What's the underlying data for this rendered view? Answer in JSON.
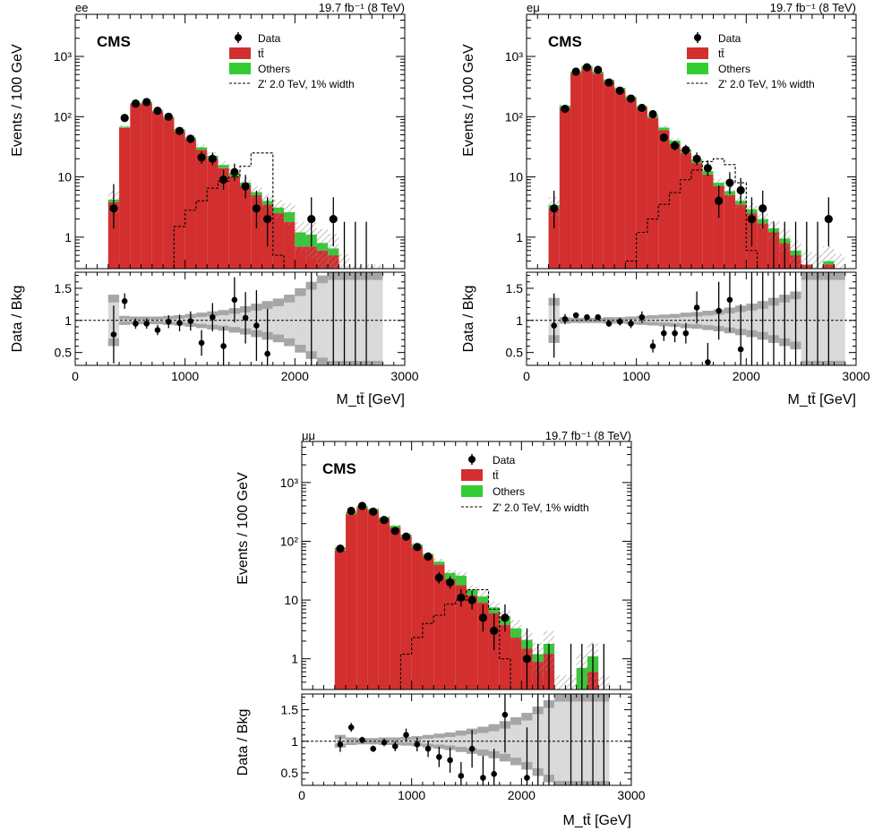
{
  "legend": {
    "data": "Data",
    "ttbar": "tt̄",
    "others": "Others",
    "zprime": "Z' 2.0 TeV, 1% width"
  },
  "colors": {
    "ttbar": "#d32f2f",
    "others": "#33cc33",
    "zprime": "#000000",
    "data": "#000000",
    "ratio_band_light": "#d9d9d9",
    "ratio_band_dark": "#a6a6a6",
    "syst_hatch": "#888888"
  },
  "chart_data": [
    {
      "type": "bar",
      "channel": "ee",
      "title": "ee",
      "lumi": "19.7 fb⁻¹ (8 TeV)",
      "experiment": "CMS",
      "ylabel": "Events / 100 GeV",
      "ratio_ylabel": "Data / Bkg",
      "xlabel": "M_tt̄ [GeV]",
      "xlim": [
        0,
        3000
      ],
      "ylim": [
        0.3,
        5000
      ],
      "yscale": "log",
      "ratio_ylim": [
        0.3,
        1.75
      ],
      "x_ticks": [
        0,
        1000,
        2000,
        3000
      ],
      "y_ticks": [
        1,
        10,
        100,
        1000
      ],
      "ratio_ticks": [
        0.5,
        1,
        1.5
      ],
      "bins_low": [
        300,
        400,
        500,
        600,
        700,
        800,
        900,
        1000,
        1100,
        1200,
        1300,
        1400,
        1500,
        1600,
        1700,
        1800,
        1900,
        2000,
        2100,
        2200,
        2300,
        2400,
        2500,
        2600,
        2700
      ],
      "ttbar": [
        3.8,
        65,
        160,
        165,
        120,
        95,
        58,
        42,
        28,
        20,
        14,
        10,
        7,
        5,
        3.5,
        2.5,
        1.8,
        0.7,
        0.7,
        0.6,
        0.5,
        0.3,
        0.2,
        0.2,
        0.2
      ],
      "others": [
        0.4,
        3,
        8,
        9,
        6,
        6,
        4,
        3,
        3,
        2.5,
        1.8,
        1.5,
        1,
        0.6,
        0.5,
        0.6,
        0.8,
        0.5,
        0.4,
        0.2,
        0.15,
        0,
        0,
        0,
        0
      ],
      "zprime": [
        0,
        0,
        0,
        0,
        0,
        0.3,
        1.5,
        2.8,
        4,
        6.5,
        8.5,
        10,
        15,
        25,
        25,
        0.5,
        0.3,
        0,
        0,
        0,
        0,
        0,
        0,
        0,
        0
      ],
      "data_x": [
        350,
        450,
        550,
        650,
        750,
        850,
        950,
        1050,
        1150,
        1250,
        1350,
        1450,
        1550,
        1650,
        1750,
        2150,
        2350
      ],
      "data_y": [
        3,
        95,
        165,
        175,
        125,
        100,
        58,
        43,
        21,
        20,
        9,
        12,
        7,
        3,
        2,
        2,
        2
      ],
      "data_err": [
        [
          1.6,
          4.6
        ],
        [
          10,
          11
        ],
        [
          13,
          14
        ],
        [
          13,
          14
        ],
        [
          11,
          12
        ],
        [
          10,
          11
        ],
        [
          7.6,
          8.6
        ],
        [
          6.5,
          7.5
        ],
        [
          4.5,
          5.5
        ],
        [
          4.4,
          5.4
        ],
        [
          2.9,
          4.1
        ],
        [
          3.4,
          4.6
        ],
        [
          2.6,
          3.8
        ],
        [
          1.6,
          2.9
        ],
        [
          1.3,
          2.6
        ],
        [
          1.3,
          2.6
        ],
        [
          1.3,
          2.6
        ]
      ],
      "extra_error_bars": [
        2450,
        2550,
        2650
      ],
      "ratio_x": [
        350,
        450,
        550,
        650,
        750,
        850,
        950,
        1050,
        1150,
        1250,
        1350,
        1450,
        1550,
        1650,
        1750
      ],
      "ratio_y": [
        0.78,
        1.3,
        0.95,
        0.95,
        0.85,
        0.98,
        0.96,
        0.99,
        0.65,
        1.05,
        0.6,
        1.32,
        1.04,
        0.92,
        0.48
      ],
      "ratio_err": [
        0.45,
        0.12,
        0.08,
        0.08,
        0.08,
        0.1,
        0.13,
        0.15,
        0.2,
        0.22,
        0.3,
        0.35,
        0.4,
        0.55,
        0.7
      ],
      "ratio_band": [
        0.4,
        0.07,
        0.06,
        0.06,
        0.06,
        0.07,
        0.08,
        0.1,
        0.12,
        0.14,
        0.16,
        0.19,
        0.22,
        0.26,
        0.3,
        0.34,
        0.4,
        0.5,
        0.6,
        0.7,
        0.75,
        0.75,
        0.75,
        0.75,
        0.75
      ]
    },
    {
      "type": "bar",
      "channel": "emu",
      "title": "eμ",
      "lumi": "19.7 fb⁻¹ (8 TeV)",
      "experiment": "CMS",
      "ylabel": "Events / 100 GeV",
      "ratio_ylabel": "Data / Bkg",
      "xlabel": "M_tt̄ [GeV]",
      "xlim": [
        0,
        3000
      ],
      "ylim": [
        0.3,
        5000
      ],
      "yscale": "log",
      "ratio_ylim": [
        0.3,
        1.75
      ],
      "x_ticks": [
        0,
        1000,
        2000,
        3000
      ],
      "y_ticks": [
        1,
        10,
        100,
        1000
      ],
      "ratio_ticks": [
        0.5,
        1,
        1.5
      ],
      "bins_low": [
        200,
        300,
        400,
        500,
        600,
        700,
        800,
        900,
        1000,
        1100,
        1200,
        1300,
        1400,
        1500,
        1600,
        1700,
        1800,
        1900,
        2000,
        2100,
        2200,
        2300,
        2400,
        2500,
        2600,
        2700,
        2800
      ],
      "ttbar": [
        3,
        140,
        520,
        640,
        520,
        380,
        280,
        200,
        140,
        95,
        60,
        35,
        25,
        17,
        11,
        7,
        5,
        3.5,
        2.5,
        1.7,
        1.2,
        0.8,
        0.5,
        0.35,
        0.3,
        0.35,
        0.3
      ],
      "others": [
        0.4,
        12,
        40,
        55,
        40,
        30,
        22,
        15,
        10,
        8,
        6,
        5,
        3.5,
        2.5,
        1.5,
        1,
        0.8,
        0.5,
        0.4,
        0.3,
        0.2,
        0.15,
        0.1,
        0,
        0,
        0.05,
        0
      ],
      "zprime": [
        0,
        0,
        0,
        0,
        0,
        0,
        0,
        0.4,
        1.2,
        2,
        3.5,
        5.5,
        9,
        13,
        18,
        20,
        16,
        8,
        0.6,
        0.3,
        0,
        0,
        0,
        0,
        0,
        0,
        0
      ],
      "data_x": [
        250,
        350,
        450,
        550,
        650,
        750,
        850,
        950,
        1050,
        1150,
        1250,
        1350,
        1450,
        1550,
        1650,
        1750,
        1850,
        1950,
        2050,
        2150,
        2750
      ],
      "data_y": [
        3,
        135,
        560,
        660,
        600,
        370,
        270,
        200,
        140,
        110,
        45,
        33,
        28,
        20,
        14,
        4,
        8,
        6,
        2,
        3,
        2
      ],
      "data_err": [
        [
          1.6,
          2.9
        ],
        [
          12,
          13
        ],
        [
          23,
          25
        ],
        [
          26,
          27
        ],
        [
          24,
          25
        ],
        [
          19,
          20
        ],
        [
          16,
          17
        ],
        [
          14,
          15
        ],
        [
          12,
          13
        ],
        [
          10,
          11
        ],
        [
          6.5,
          7.5
        ],
        [
          5.6,
          6.7
        ],
        [
          5.2,
          6.2
        ],
        [
          4.4,
          5.5
        ],
        [
          3.7,
          4.8
        ],
        [
          1.9,
          3.2
        ],
        [
          2.8,
          4
        ],
        [
          2.4,
          3.6
        ],
        [
          1.3,
          2.6
        ],
        [
          1.6,
          2.9
        ],
        [
          1.3,
          2.6
        ]
      ],
      "extra_error_bars": [
        2250,
        2350,
        2450,
        2550,
        2650
      ],
      "ratio_x": [
        250,
        350,
        450,
        550,
        650,
        750,
        850,
        950,
        1050,
        1150,
        1250,
        1350,
        1450,
        1550,
        1650,
        1750,
        1850,
        1950
      ],
      "ratio_y": [
        0.92,
        1.02,
        1.08,
        1.05,
        1.05,
        0.95,
        0.98,
        0.95,
        1.05,
        0.6,
        0.8,
        0.8,
        0.8,
        1.2,
        0.35,
        1.15,
        1.32,
        0.55
      ],
      "ratio_err": [
        0.5,
        0.08,
        0.04,
        0.04,
        0.04,
        0.05,
        0.06,
        0.07,
        0.09,
        0.1,
        0.12,
        0.14,
        0.16,
        0.25,
        0.3,
        0.45,
        0.5,
        0.7
      ],
      "ratio_band": [
        0.35,
        0.05,
        0.04,
        0.04,
        0.04,
        0.05,
        0.05,
        0.06,
        0.07,
        0.08,
        0.09,
        0.1,
        0.12,
        0.13,
        0.15,
        0.17,
        0.2,
        0.23,
        0.26,
        0.3,
        0.35,
        0.4,
        0.45,
        0.75,
        0.75,
        0.75,
        0.75
      ]
    },
    {
      "type": "bar",
      "channel": "mumu",
      "title": "μμ",
      "lumi": "19.7 fb⁻¹ (8 TeV)",
      "experiment": "CMS",
      "ylabel": "Events / 100 GeV",
      "ratio_ylabel": "Data / Bkg",
      "xlabel": "M_tt̄ [GeV]",
      "xlim": [
        0,
        3000
      ],
      "ylim": [
        0.3,
        5000
      ],
      "yscale": "log",
      "ratio_ylim": [
        0.3,
        1.75
      ],
      "x_ticks": [
        0,
        1000,
        2000,
        3000
      ],
      "y_ticks": [
        1,
        10,
        100,
        1000
      ],
      "ratio_ticks": [
        0.5,
        1,
        1.5
      ],
      "bins_low": [
        300,
        400,
        500,
        600,
        700,
        800,
        900,
        1000,
        1100,
        1200,
        1300,
        1400,
        1500,
        1600,
        1700,
        1800,
        1900,
        2000,
        2100,
        2200,
        2300,
        2400,
        2500,
        2600,
        2700
      ],
      "ttbar": [
        70,
        290,
        370,
        330,
        240,
        170,
        120,
        80,
        55,
        40,
        23,
        18,
        12,
        9,
        6,
        3.8,
        2.3,
        1.5,
        0.9,
        1.2,
        0.3,
        0.3,
        0.3,
        0.6,
        0.3
      ],
      "others": [
        8,
        25,
        30,
        25,
        18,
        14,
        10,
        8,
        6,
        5,
        6,
        8,
        3,
        2.5,
        1.5,
        1.5,
        1,
        0.6,
        0.3,
        0.6,
        0,
        0,
        0.4,
        0.5,
        0
      ],
      "zprime": [
        0,
        0,
        0,
        0,
        0,
        0.3,
        1.2,
        2.3,
        4,
        5.5,
        8.5,
        10,
        15,
        15,
        7,
        1,
        0.3,
        0,
        0,
        0,
        0,
        0,
        0,
        0,
        0
      ],
      "data_x": [
        350,
        450,
        550,
        650,
        750,
        850,
        950,
        1050,
        1150,
        1250,
        1350,
        1450,
        1550,
        1650,
        1750,
        1850,
        2050
      ],
      "data_y": [
        75,
        330,
        400,
        320,
        230,
        150,
        120,
        80,
        55,
        24,
        20,
        11,
        10,
        5,
        3,
        5,
        1
      ],
      "data_err": [
        [
          8,
          9
        ],
        [
          18,
          19
        ],
        [
          20,
          21
        ],
        [
          18,
          19
        ],
        [
          15,
          16
        ],
        [
          12,
          13
        ],
        [
          11,
          12
        ],
        [
          9,
          10
        ],
        [
          7.4,
          8.4
        ],
        [
          4.9,
          6
        ],
        [
          4.4,
          5.4
        ],
        [
          3.3,
          4.5
        ],
        [
          3.1,
          4.3
        ],
        [
          2.1,
          3.4
        ],
        [
          1.6,
          2.9
        ],
        [
          2.1,
          3.4
        ],
        [
          0.8,
          2.3
        ]
      ],
      "extra_error_bars": [
        2150,
        2250,
        2450,
        2550,
        2650,
        2750
      ],
      "ratio_x": [
        350,
        450,
        550,
        650,
        750,
        850,
        950,
        1050,
        1150,
        1250,
        1350,
        1450,
        1550,
        1650,
        1750,
        1850,
        2050
      ],
      "ratio_y": [
        0.95,
        1.22,
        1.02,
        0.88,
        0.98,
        0.92,
        1.1,
        0.95,
        0.88,
        0.75,
        0.7,
        0.45,
        0.88,
        0.42,
        0.48,
        1.42,
        0.42
      ],
      "ratio_err": [
        0.12,
        0.07,
        0.05,
        0.05,
        0.06,
        0.08,
        0.1,
        0.11,
        0.13,
        0.16,
        0.2,
        0.22,
        0.3,
        0.35,
        0.4,
        0.6,
        0.8
      ],
      "ratio_band": [
        0.1,
        0.06,
        0.05,
        0.05,
        0.06,
        0.06,
        0.07,
        0.08,
        0.1,
        0.12,
        0.14,
        0.17,
        0.2,
        0.23,
        0.27,
        0.32,
        0.38,
        0.45,
        0.55,
        0.65,
        0.75,
        0.75,
        0.75,
        0.75,
        0.75
      ]
    }
  ]
}
